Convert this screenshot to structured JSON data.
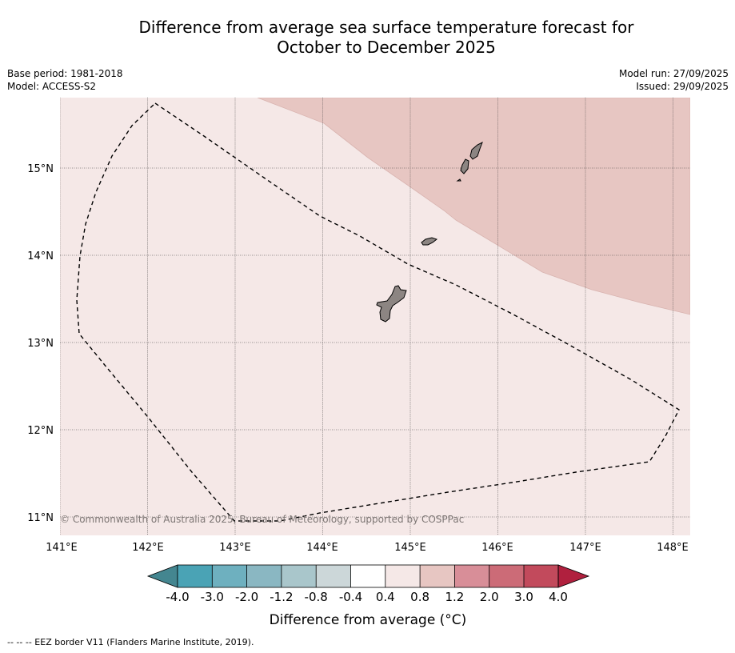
{
  "title": {
    "line1": "Difference from average sea surface temperature forecast for",
    "line2": "October to December 2025"
  },
  "meta": {
    "base_period": "Base period: 1981-2018",
    "model": "Model: ACCESS-S2",
    "model_run": "Model run: 27/09/2025",
    "issued": "Issued: 29/09/2025"
  },
  "map": {
    "lon_range": [
      141,
      148.2
    ],
    "lat_range": [
      10.8,
      15.8
    ],
    "lon_labels": [
      "141°E",
      "142°E",
      "143°E",
      "144°E",
      "145°E",
      "146°E",
      "147°E",
      "148°E"
    ],
    "lat_labels": [
      "11°N",
      "12°N",
      "13°N",
      "14°N",
      "15°N"
    ],
    "copyright": "© Commonwealth of Australia 2025, Bureau of Meteorology, supported by COSPPac",
    "anomaly_bands": [
      "0.4 to 0.8 °C (most of area)",
      "0.8 to 1.2 °C (north-east)"
    ],
    "islands": [
      "Guam",
      "Rota",
      "Tinian",
      "Saipan"
    ]
  },
  "colorbar": {
    "ticks": [
      "-4.0",
      "-3.0",
      "-2.0",
      "-1.2",
      "-0.8",
      "-0.4",
      "0.4",
      "0.8",
      "1.2",
      "2.0",
      "3.0",
      "4.0"
    ],
    "colors": [
      "#4aa3b5",
      "#6eb0bf",
      "#8ab7c2",
      "#a9c6cb",
      "#ccd7d9",
      "#ffffff",
      "#f5e8e7",
      "#e7c6c2",
      "#d88e98",
      "#cc6b77",
      "#c24a5c"
    ],
    "under_color": "#448690",
    "over_color": "#b0203e",
    "label": "Difference from average (°C)"
  },
  "colors": {
    "band_low": "#f5e8e7",
    "band_high": "#e7c6c2",
    "land": "#8c8582"
  },
  "legend": {
    "eez_label": "--  --  -- EEZ border V11 (Flanders Marine Institute, 2019)."
  }
}
